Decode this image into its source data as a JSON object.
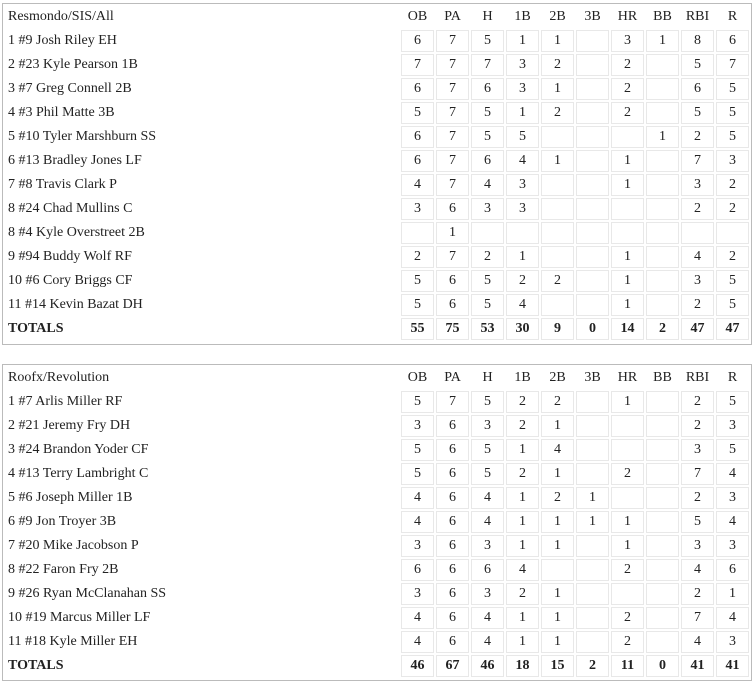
{
  "columns": [
    "OB",
    "PA",
    "H",
    "1B",
    "2B",
    "3B",
    "HR",
    "BB",
    "RBI",
    "R"
  ],
  "teams": [
    {
      "name": "Resmondo/SIS/All",
      "players": [
        {
          "player": "1 #9 Josh Riley EH",
          "stats": [
            "6",
            "7",
            "5",
            "1",
            "1",
            "",
            "3",
            "1",
            "8",
            "6"
          ]
        },
        {
          "player": "2 #23 Kyle Pearson 1B",
          "stats": [
            "7",
            "7",
            "7",
            "3",
            "2",
            "",
            "2",
            "",
            "5",
            "7"
          ]
        },
        {
          "player": "3 #7 Greg Connell 2B",
          "stats": [
            "6",
            "7",
            "6",
            "3",
            "1",
            "",
            "2",
            "",
            "6",
            "5"
          ]
        },
        {
          "player": "4 #3 Phil Matte 3B",
          "stats": [
            "5",
            "7",
            "5",
            "1",
            "2",
            "",
            "2",
            "",
            "5",
            "5"
          ]
        },
        {
          "player": "5 #10 Tyler Marshburn SS",
          "stats": [
            "6",
            "7",
            "5",
            "5",
            "",
            "",
            "",
            "1",
            "2",
            "5"
          ]
        },
        {
          "player": "6 #13 Bradley Jones LF",
          "stats": [
            "6",
            "7",
            "6",
            "4",
            "1",
            "",
            "1",
            "",
            "7",
            "3"
          ]
        },
        {
          "player": "7 #8 Travis Clark P",
          "stats": [
            "4",
            "7",
            "4",
            "3",
            "",
            "",
            "1",
            "",
            "3",
            "2"
          ]
        },
        {
          "player": "8 #24 Chad Mullins C",
          "stats": [
            "3",
            "6",
            "3",
            "3",
            "",
            "",
            "",
            "",
            "2",
            "2"
          ]
        },
        {
          "player": "8 #4 Kyle Overstreet 2B",
          "stats": [
            "",
            "1",
            "",
            "",
            "",
            "",
            "",
            "",
            "",
            ""
          ]
        },
        {
          "player": "9 #94 Buddy Wolf RF",
          "stats": [
            "2",
            "7",
            "2",
            "1",
            "",
            "",
            "1",
            "",
            "4",
            "2"
          ]
        },
        {
          "player": "10 #6 Cory Briggs CF",
          "stats": [
            "5",
            "6",
            "5",
            "2",
            "2",
            "",
            "1",
            "",
            "3",
            "5"
          ]
        },
        {
          "player": "11 #14 Kevin Bazat DH",
          "stats": [
            "5",
            "6",
            "5",
            "4",
            "",
            "",
            "1",
            "",
            "2",
            "5"
          ]
        }
      ],
      "totals": {
        "label": "TOTALS",
        "stats": [
          "55",
          "75",
          "53",
          "30",
          "9",
          "0",
          "14",
          "2",
          "47",
          "47"
        ]
      }
    },
    {
      "name": "Roofx/Revolution",
      "players": [
        {
          "player": "1 #7 Arlis Miller RF",
          "stats": [
            "5",
            "7",
            "5",
            "2",
            "2",
            "",
            "1",
            "",
            "2",
            "5"
          ]
        },
        {
          "player": "2 #21 Jeremy Fry DH",
          "stats": [
            "3",
            "6",
            "3",
            "2",
            "1",
            "",
            "",
            "",
            "2",
            "3"
          ]
        },
        {
          "player": "3 #24 Brandon Yoder CF",
          "stats": [
            "5",
            "6",
            "5",
            "1",
            "4",
            "",
            "",
            "",
            "3",
            "5"
          ]
        },
        {
          "player": "4 #13 Terry Lambright C",
          "stats": [
            "5",
            "6",
            "5",
            "2",
            "1",
            "",
            "2",
            "",
            "7",
            "4"
          ]
        },
        {
          "player": "5 #6 Joseph Miller 1B",
          "stats": [
            "4",
            "6",
            "4",
            "1",
            "2",
            "1",
            "",
            "",
            "2",
            "3"
          ]
        },
        {
          "player": "6 #9 Jon Troyer 3B",
          "stats": [
            "4",
            "6",
            "4",
            "1",
            "1",
            "1",
            "1",
            "",
            "5",
            "4"
          ]
        },
        {
          "player": "7 #20 Mike Jacobson P",
          "stats": [
            "3",
            "6",
            "3",
            "1",
            "1",
            "",
            "1",
            "",
            "3",
            "3"
          ]
        },
        {
          "player": "8 #22 Faron Fry 2B",
          "stats": [
            "6",
            "6",
            "6",
            "4",
            "",
            "",
            "2",
            "",
            "4",
            "6"
          ]
        },
        {
          "player": "9 #26 Ryan McClanahan SS",
          "stats": [
            "3",
            "6",
            "3",
            "2",
            "1",
            "",
            "",
            "",
            "2",
            "1"
          ]
        },
        {
          "player": "10 #19 Marcus Miller LF",
          "stats": [
            "4",
            "6",
            "4",
            "1",
            "1",
            "",
            "2",
            "",
            "7",
            "4"
          ]
        },
        {
          "player": "11 #18 Kyle Miller EH",
          "stats": [
            "4",
            "6",
            "4",
            "1",
            "1",
            "",
            "2",
            "",
            "4",
            "3"
          ]
        }
      ],
      "totals": {
        "label": "TOTALS",
        "stats": [
          "46",
          "67",
          "46",
          "18",
          "15",
          "2",
          "11",
          "0",
          "41",
          "41"
        ]
      }
    }
  ]
}
